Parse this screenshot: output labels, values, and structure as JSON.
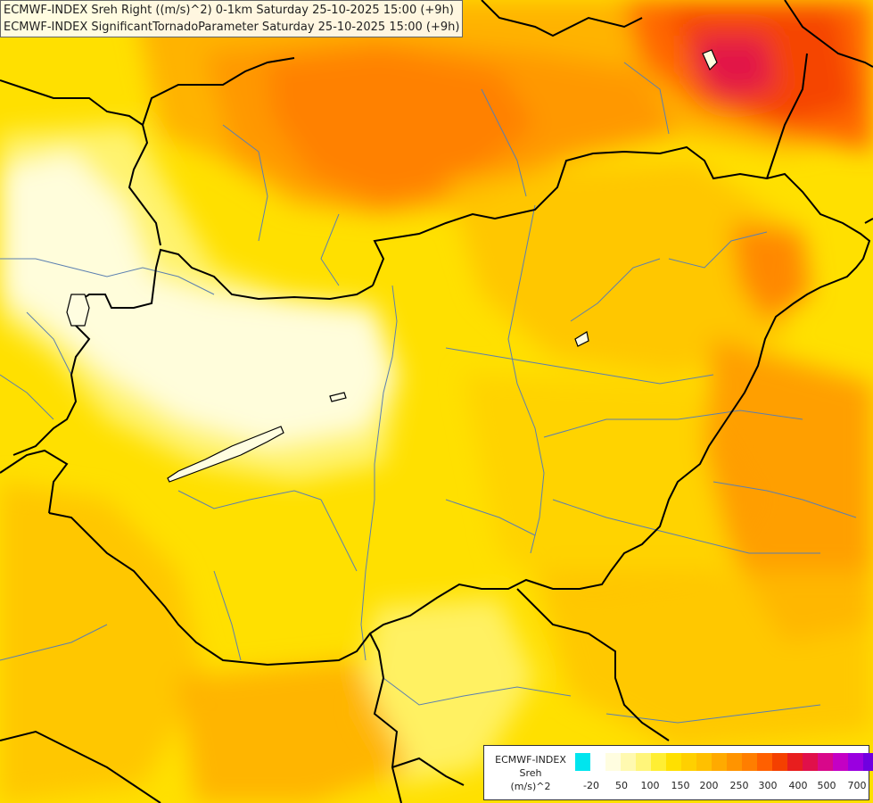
{
  "header": {
    "line1": "ECMWF-INDEX Sreh Right ((m/s)^2) 0-1km Saturday 25-10-2025 15:00 (+9h)",
    "line2": "ECMWF-INDEX SignificantTornadoParameter Saturday 25-10-2025 15:00 (+9h)"
  },
  "legend": {
    "title_line1": "ECMWF-INDEX",
    "title_line2": "Sreh",
    "title_line3": "(m/s)^2",
    "colors": [
      "#00e5ee",
      "#ffffff",
      "#fffde0",
      "#fff9b0",
      "#fff57a",
      "#ffee33",
      "#ffe000",
      "#ffd000",
      "#ffc000",
      "#ffaa00",
      "#ff9400",
      "#ff7e00",
      "#ff6000",
      "#f44000",
      "#e81e1e",
      "#e0104a",
      "#d8088a",
      "#c400c4",
      "#9a00e0",
      "#7000e0",
      "#4000c0",
      "#1a0090"
    ],
    "ticks": [
      "-20",
      "50",
      "100",
      "150",
      "200",
      "250",
      "300",
      "400",
      "500",
      "700"
    ]
  },
  "map": {
    "blobs": [
      {
        "color": "#ffaa00",
        "opacity": 0.85
      },
      {
        "color": "#ff9400",
        "opacity": 0.85
      },
      {
        "color": "#ff7e00",
        "opacity": 0.9
      },
      {
        "color": "#ff6000",
        "opacity": 0.9
      },
      {
        "color": "#f44000",
        "opacity": 0.9
      },
      {
        "color": "#e0104a",
        "opacity": 0.95
      },
      {
        "color": "#fff57a",
        "opacity": 0.9
      },
      {
        "color": "#fffde0",
        "opacity": 0.95
      },
      {
        "color": "#ffc000",
        "opacity": 0.8
      },
      {
        "color": "#ffd000",
        "opacity": 0.8
      },
      {
        "color": "#ff9400",
        "opacity": 0.85
      },
      {
        "color": "#ffc000",
        "opacity": 0.75
      },
      {
        "color": "#fff57a",
        "opacity": 0.8
      },
      {
        "color": "#ffc000",
        "opacity": 0.8
      },
      {
        "color": "#ff7e00",
        "opacity": 0.85
      },
      {
        "color": "#ffaa00",
        "opacity": 0.8
      }
    ],
    "border_color": "#000000",
    "river_color": "#5b7fb0"
  }
}
